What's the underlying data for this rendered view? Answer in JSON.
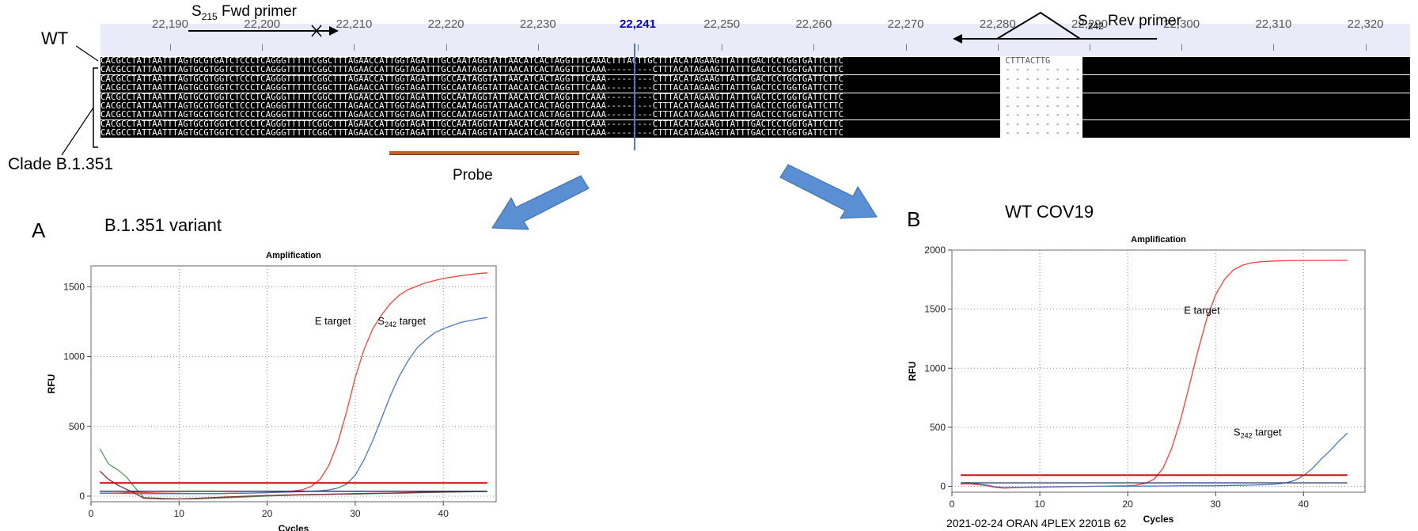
{
  "alignment": {
    "ruler_positions": [
      "22,190",
      "22,200",
      "22,210",
      "22,220",
      "22,230",
      "22,241",
      "22,250",
      "22,260",
      "22,270",
      "22,280",
      "22,290",
      "22,300",
      "22,310",
      "22,320"
    ],
    "highlight_position": "22,241",
    "wt_label": "WT",
    "clade_label": "Clade B.1.351",
    "fwd_primer": {
      "letter": "S",
      "sub": "215",
      "text": " Fwd primer"
    },
    "rev_primer": {
      "letter": "S",
      "sub": "242",
      "text": " Rev primer"
    },
    "probe_label": "Probe",
    "wt_sequence": "CACGCCTATTAATTTAGTGCGTGATCTCCCTCAGGGTTTTTCGGCTTTAGAACCATTGGTAGATTTGCCAATAGGTATTAACATCACTAGGTTTCAAACTTTACTTGCTTTACATAGAAGTTATTTGACTCCTGGTGATTCTTC",
    "clade_sequence_left": "CACGCCTATTAATTTAGTGCGTGGTCTCCCTCAGGGTTTTTCGGCTTTAGAACCATTGGTAGATTTGCCAATAGGTATTAACATCACTAGGTTTCAAA",
    "clade_gap": "---------",
    "clade_sequence_right": "CTTTACATAGAAGTTATTTGACTCCTGGTGATTCTTC",
    "row_count": 9
  },
  "panel_a": {
    "letter": "A",
    "title": "B.1.351 variant"
  },
  "panel_b": {
    "letter": "B",
    "title": "WT COV19",
    "footer": "2021-02-24 ORAN 4PLEX 2201B 62"
  },
  "chart_data": [
    {
      "type": "line",
      "title": "Amplification",
      "xlabel": "Cycles",
      "ylabel": "RFU",
      "xlim": [
        0,
        46
      ],
      "ylim": [
        -40,
        1650
      ],
      "xticks": [
        0,
        10,
        20,
        30,
        40
      ],
      "yticks": [
        0,
        500,
        1000,
        1500
      ],
      "grid": true,
      "threshold": 95,
      "annotations": [
        {
          "text": "E target",
          "sub": "",
          "x": 29.5,
          "y": 1230
        },
        {
          "text": "S",
          "sub": "242",
          "tail": " target",
          "x": 38,
          "y": 1230
        }
      ],
      "series": [
        {
          "color": "#ff3b3b",
          "x": [
            1,
            2,
            3,
            4,
            5,
            6,
            8,
            10,
            12,
            14,
            16,
            18,
            20,
            22,
            24,
            25,
            26,
            27,
            28,
            29,
            30,
            31,
            32,
            33,
            34,
            35,
            36,
            38,
            40,
            42,
            44,
            45
          ],
          "y": [
            20,
            22,
            22,
            25,
            28,
            25,
            22,
            20,
            18,
            18,
            20,
            22,
            25,
            30,
            45,
            70,
            120,
            220,
            380,
            600,
            850,
            1050,
            1200,
            1300,
            1380,
            1440,
            1480,
            1530,
            1560,
            1580,
            1595,
            1600
          ]
        },
        {
          "color": "#4a78c0",
          "x": [
            1,
            2,
            3,
            4,
            5,
            6,
            8,
            10,
            12,
            14,
            16,
            18,
            20,
            22,
            24,
            26,
            27,
            28,
            29,
            30,
            31,
            32,
            33,
            34,
            35,
            36,
            37,
            38,
            39,
            40,
            42,
            44,
            45
          ],
          "y": [
            20,
            22,
            20,
            20,
            18,
            18,
            18,
            18,
            18,
            18,
            20,
            22,
            25,
            28,
            32,
            38,
            45,
            58,
            85,
            150,
            260,
            400,
            560,
            720,
            860,
            970,
            1060,
            1120,
            1170,
            1200,
            1245,
            1270,
            1280
          ]
        },
        {
          "color": "#5a9a5a",
          "x": [
            1,
            2,
            3,
            4,
            5,
            6,
            8,
            10,
            12,
            14,
            16,
            18,
            20,
            22,
            24,
            26,
            28,
            30,
            32,
            34,
            36,
            38,
            40,
            42,
            44,
            45
          ],
          "y": [
            340,
            230,
            190,
            140,
            60,
            -10,
            -15,
            -20,
            -20,
            -15,
            -10,
            -5,
            0,
            5,
            10,
            12,
            15,
            15,
            18,
            20,
            22,
            25,
            28,
            30,
            32,
            33
          ]
        },
        {
          "color": "#8b2a3a",
          "x": [
            1,
            2,
            3,
            4,
            5,
            6,
            8,
            10,
            12,
            14,
            16,
            18,
            20,
            22,
            24,
            26,
            28,
            30,
            32,
            34,
            36,
            38,
            40,
            42,
            44,
            45
          ],
          "y": [
            180,
            120,
            80,
            50,
            20,
            -15,
            -20,
            -20,
            -15,
            -10,
            -5,
            0,
            5,
            8,
            10,
            12,
            15,
            18,
            20,
            22,
            25,
            28,
            30,
            32,
            34,
            35
          ]
        },
        {
          "color": "#1a2a5a",
          "x": [
            1,
            45
          ],
          "y": [
            35,
            35
          ]
        }
      ]
    },
    {
      "type": "line",
      "title": "Amplification",
      "xlabel": "Cycles",
      "ylabel": "RFU",
      "xlim": [
        0,
        47
      ],
      "ylim": [
        -50,
        2000
      ],
      "xticks": [
        0,
        10,
        20,
        30,
        40
      ],
      "yticks": [
        0,
        500,
        1000,
        1500,
        2000
      ],
      "grid": true,
      "threshold": 95,
      "annotations": [
        {
          "text": "E target",
          "sub": "",
          "x": 30.5,
          "y": 1460
        },
        {
          "text": "S",
          "sub": "242",
          "tail": " target",
          "x": 37.5,
          "y": 430
        }
      ],
      "series": [
        {
          "color": "#ff3b3b",
          "x": [
            1,
            2,
            3,
            4,
            5,
            6,
            8,
            10,
            12,
            14,
            16,
            18,
            20,
            21,
            22,
            23,
            24,
            25,
            26,
            27,
            28,
            29,
            30,
            31,
            32,
            33,
            34,
            35,
            36,
            38,
            40,
            42,
            44,
            45
          ],
          "y": [
            20,
            20,
            15,
            5,
            -10,
            -15,
            -10,
            -8,
            -5,
            -2,
            0,
            2,
            5,
            10,
            25,
            60,
            150,
            320,
            560,
            850,
            1150,
            1420,
            1620,
            1750,
            1830,
            1870,
            1890,
            1900,
            1905,
            1910,
            1912,
            1912,
            1913,
            1913
          ]
        },
        {
          "color": "#4a78c0",
          "x": [
            1,
            2,
            3,
            4,
            5,
            6,
            8,
            10,
            12,
            14,
            16,
            18,
            20,
            22,
            24,
            26,
            28,
            30,
            32,
            34,
            36,
            37,
            38,
            39,
            40,
            41,
            42,
            43,
            44,
            45
          ],
          "y": [
            30,
            32,
            20,
            10,
            -5,
            -10,
            -8,
            -5,
            -3,
            -2,
            0,
            0,
            0,
            2,
            3,
            5,
            5,
            5,
            8,
            10,
            15,
            20,
            30,
            50,
            90,
            150,
            230,
            300,
            380,
            450
          ]
        },
        {
          "color": "#1a2a5a",
          "x": [
            1,
            45
          ],
          "y": [
            30,
            30
          ]
        }
      ]
    }
  ]
}
